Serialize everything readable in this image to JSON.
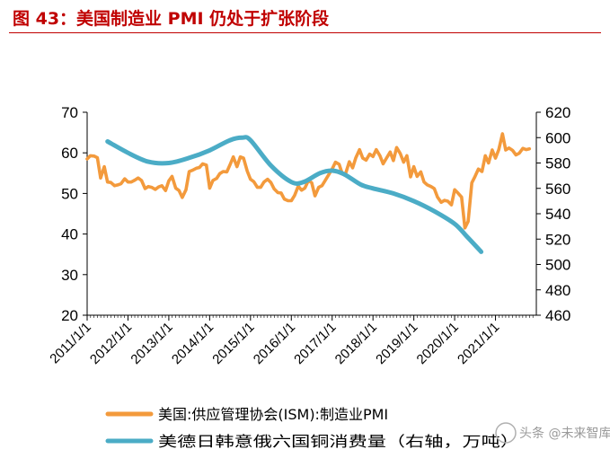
{
  "title": "图 43：美国制造业 PMI 仍处于扩张阶段",
  "watermark": "头条 @未来智库",
  "chart_data": {
    "type": "line",
    "title": "图 43：美国制造业 PMI 仍处于扩张阶段",
    "x_labels": [
      "2011/1/1",
      "2012/1/1",
      "2013/1/1",
      "2014/1/1",
      "2015/1/1",
      "2016/1/1",
      "2017/1/1",
      "2018/1/1",
      "2019/1/1",
      "2020/1/1",
      "2021/1/1"
    ],
    "x_range": [
      2011.0,
      2022.0
    ],
    "y_left": {
      "range": [
        20,
        70
      ],
      "ticks": [
        20,
        30,
        40,
        50,
        60,
        70
      ]
    },
    "y_right": {
      "range": [
        460,
        620
      ],
      "ticks": [
        460,
        480,
        500,
        520,
        540,
        560,
        580,
        600,
        620
      ]
    },
    "colors": {
      "pmi": "#f39a3c",
      "copper": "#4bacc6"
    },
    "series": [
      {
        "name": "美国:供应管理协会(ISM):制造业PMI",
        "axis": "left",
        "color": "#f39a3c",
        "x": [
          2011.0,
          2011.08,
          2011.17,
          2011.25,
          2011.33,
          2011.42,
          2011.5,
          2011.58,
          2011.67,
          2011.75,
          2011.83,
          2011.92,
          2012.0,
          2012.08,
          2012.17,
          2012.25,
          2012.33,
          2012.42,
          2012.5,
          2012.58,
          2012.67,
          2012.75,
          2012.83,
          2012.92,
          2013.0,
          2013.08,
          2013.17,
          2013.25,
          2013.33,
          2013.42,
          2013.5,
          2013.58,
          2013.67,
          2013.75,
          2013.83,
          2013.92,
          2014.0,
          2014.08,
          2014.17,
          2014.25,
          2014.33,
          2014.42,
          2014.5,
          2014.58,
          2014.67,
          2014.75,
          2014.83,
          2014.92,
          2015.0,
          2015.08,
          2015.17,
          2015.25,
          2015.33,
          2015.42,
          2015.5,
          2015.58,
          2015.67,
          2015.75,
          2015.83,
          2015.92,
          2016.0,
          2016.08,
          2016.17,
          2016.25,
          2016.33,
          2016.42,
          2016.5,
          2016.58,
          2016.67,
          2016.75,
          2016.83,
          2016.92,
          2017.0,
          2017.08,
          2017.17,
          2017.25,
          2017.33,
          2017.42,
          2017.5,
          2017.58,
          2017.67,
          2017.75,
          2017.83,
          2017.92,
          2018.0,
          2018.08,
          2018.17,
          2018.25,
          2018.33,
          2018.42,
          2018.5,
          2018.58,
          2018.67,
          2018.75,
          2018.83,
          2018.92,
          2019.0,
          2019.08,
          2019.17,
          2019.25,
          2019.33,
          2019.42,
          2019.5,
          2019.58,
          2019.67,
          2019.75,
          2019.83,
          2019.92,
          2020.0,
          2020.08,
          2020.17,
          2020.25,
          2020.33,
          2020.42,
          2020.5,
          2020.58,
          2020.67,
          2020.75,
          2020.83,
          2020.92,
          2021.0,
          2021.08,
          2021.17,
          2021.25,
          2021.33,
          2021.42,
          2021.5,
          2021.58,
          2021.67,
          2021.75,
          2021.83
        ],
        "values": [
          58.5,
          59.3,
          59.2,
          58.8,
          53.8,
          56.6,
          52.8,
          52.7,
          51.9,
          52.1,
          52.4,
          53.6,
          52.8,
          52.8,
          53.3,
          53.8,
          53.2,
          51.2,
          51.7,
          51.5,
          51.0,
          51.6,
          51.9,
          50.7,
          53.1,
          54.2,
          51.3,
          50.7,
          49.0,
          50.9,
          55.4,
          55.7,
          56.2,
          56.4,
          57.3,
          57.0,
          51.3,
          53.2,
          53.7,
          54.9,
          55.4,
          55.3,
          57.1,
          59.0,
          56.6,
          59.0,
          58.7,
          55.5,
          53.5,
          52.9,
          51.5,
          51.5,
          52.8,
          53.5,
          52.7,
          51.1,
          50.2,
          50.1,
          48.6,
          48.2,
          48.2,
          49.5,
          51.8,
          50.8,
          51.3,
          53.2,
          52.6,
          49.4,
          51.5,
          51.9,
          53.2,
          54.7,
          56.0,
          57.7,
          57.2,
          54.8,
          54.9,
          57.8,
          56.3,
          58.8,
          60.8,
          58.7,
          58.2,
          59.7,
          59.1,
          60.8,
          59.3,
          57.3,
          58.7,
          60.2,
          58.1,
          61.3,
          59.8,
          57.7,
          59.3,
          54.1,
          56.6,
          54.2,
          55.3,
          52.8,
          52.1,
          51.7,
          51.2,
          49.1,
          47.8,
          48.3,
          48.1,
          47.2,
          50.9,
          50.1,
          49.1,
          41.5,
          43.1,
          52.6,
          54.2,
          56.0,
          55.4,
          59.3,
          57.5,
          60.7,
          58.7,
          60.8,
          64.7,
          60.7,
          61.2,
          60.6,
          59.5,
          59.9,
          61.1,
          60.8,
          61.0
        ]
      },
      {
        "name": "美德日韩意俄六国铜消费量（右轴，万吨）",
        "axis": "right",
        "color": "#4bacc6",
        "x": [
          2011.5,
          2012.0,
          2012.5,
          2013.0,
          2013.5,
          2014.0,
          2014.5,
          2014.8,
          2015.0,
          2015.5,
          2016.0,
          2016.3,
          2016.7,
          2017.0,
          2017.3,
          2017.7,
          2018.0,
          2018.5,
          2019.0,
          2019.5,
          2020.0,
          2020.3,
          2020.65
        ],
        "values": [
          597,
          588,
          581,
          580,
          584,
          590,
          598,
          600,
          598,
          578,
          565,
          565,
          572,
          574,
          571,
          563,
          560,
          556,
          550,
          542,
          532,
          522,
          510
        ]
      }
    ]
  }
}
